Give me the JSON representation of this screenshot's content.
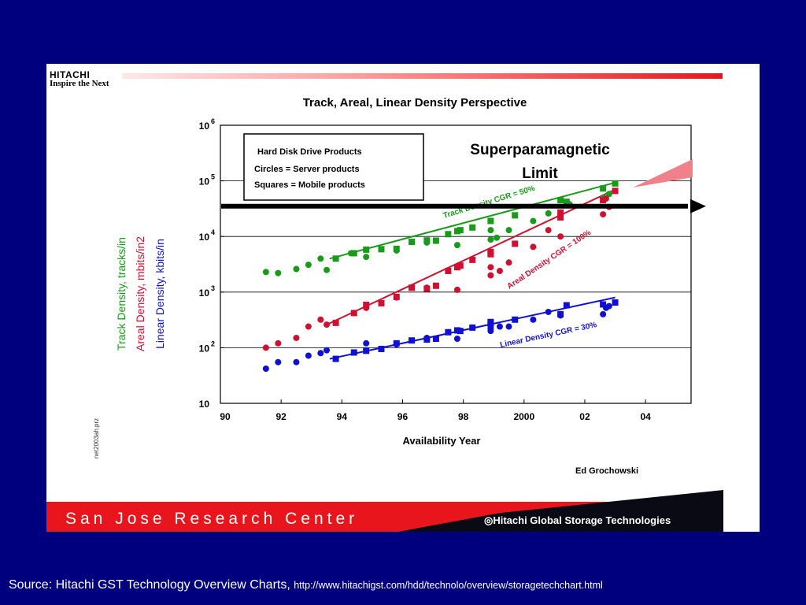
{
  "brand": {
    "logo_name": "HITACHI",
    "logo_tagline": "Inspire the Next",
    "footer_center": "San Jose Research Center",
    "footer_brand": "◎Hitachi Global Storage Technologies"
  },
  "source": {
    "text": "Source: Hitachi GST Technology Overview Charts,",
    "url": "http://www.hitachigst.com/hdd/technolo/overview/storagetechchart.html"
  },
  "chart_data": {
    "type": "scatter",
    "title": "Track, Areal, Linear Density Perspective",
    "xlabel": "Availability Year",
    "xlim": [
      1990,
      2005.5
    ],
    "x_ticks": [
      1990,
      1992,
      1994,
      1996,
      1998,
      2000,
      2002,
      2004
    ],
    "x_tick_labels": [
      "90",
      "92",
      "94",
      "96",
      "98",
      "2000",
      "02",
      "04"
    ],
    "y_scale": "log",
    "ylim": [
      10,
      1000000
    ],
    "y_ticks": [
      {
        "value": 1000000,
        "base": "10",
        "exp": "6"
      },
      {
        "value": 100000,
        "base": "10",
        "exp": "5"
      },
      {
        "value": 10000,
        "base": "10",
        "exp": "4"
      },
      {
        "value": 1000,
        "base": "10",
        "exp": "3"
      },
      {
        "value": 100,
        "base": "10",
        "exp": "2"
      },
      {
        "value": 10,
        "base": "10",
        "exp": ""
      }
    ],
    "gridlines_y": [
      100000,
      10000,
      1000,
      100
    ],
    "ylabels": [
      {
        "text": "Track Density, tracks/in",
        "color": "#1a9a1a"
      },
      {
        "text": "Areal Density, mbits/in2",
        "color": "#d01030"
      },
      {
        "text": "Linear  Density, kbits/in",
        "color": "#1010d0"
      }
    ],
    "legend": {
      "placement": "top-left",
      "lines": [
        "Hard Disk Drive Products",
        "Circles = Server products",
        "Squares = Mobile products"
      ]
    },
    "limit_annotation": {
      "label_lines": [
        "Superparamagnetic",
        "Limit"
      ],
      "y_value": 35000
    },
    "side_label": "net2003ah.prz",
    "author": "Ed Grochowski",
    "series": [
      {
        "key": "track",
        "color": "#1a9a1a",
        "trend_label": "Track Density CGR = 50%",
        "trend": [
          [
            1993.6,
            4000
          ],
          [
            2003,
            93000
          ]
        ],
        "circles": [
          [
            1991.5,
            2300
          ],
          [
            1991.9,
            2200
          ],
          [
            1992.5,
            2600
          ],
          [
            1992.9,
            3100
          ],
          [
            1993.3,
            4000
          ],
          [
            1993.5,
            2500
          ],
          [
            1994.3,
            5000
          ],
          [
            1994.8,
            4300
          ],
          [
            1995.8,
            5600
          ],
          [
            1996.8,
            7800
          ],
          [
            1997.8,
            7000
          ],
          [
            1998.9,
            8800
          ],
          [
            1998.9,
            13000
          ],
          [
            1999.1,
            9500
          ],
          [
            1999.5,
            13000
          ],
          [
            2000.3,
            19000
          ],
          [
            2000.8,
            26000
          ],
          [
            2001.5,
            38000
          ],
          [
            2002.6,
            50000
          ],
          [
            2002.8,
            58000
          ]
        ],
        "squares": [
          [
            1993.8,
            4000
          ],
          [
            1994.4,
            5000
          ],
          [
            1994.8,
            5800
          ],
          [
            1995.3,
            5900
          ],
          [
            1995.8,
            6000
          ],
          [
            1996.3,
            8000
          ],
          [
            1996.8,
            8500
          ],
          [
            1997.1,
            8400
          ],
          [
            1997.5,
            11000
          ],
          [
            1997.8,
            12500
          ],
          [
            1997.9,
            13000
          ],
          [
            1998.3,
            14500
          ],
          [
            1998.9,
            19000
          ],
          [
            1999.7,
            24000
          ],
          [
            2001.2,
            45000
          ],
          [
            2001.4,
            42000
          ],
          [
            2002.6,
            73000
          ],
          [
            2003.0,
            90000
          ]
        ]
      },
      {
        "key": "areal",
        "color": "#d01030",
        "trend_label": "Areal  Density CGR = 100%",
        "trend": [
          [
            1993.5,
            260
          ],
          [
            2003,
            70000
          ]
        ],
        "circles": [
          [
            1991.5,
            100
          ],
          [
            1991.9,
            120
          ],
          [
            1992.5,
            150
          ],
          [
            1992.9,
            240
          ],
          [
            1993.3,
            320
          ],
          [
            1993.5,
            260
          ],
          [
            1994.8,
            520
          ],
          [
            1995.8,
            800
          ],
          [
            1996.8,
            1200
          ],
          [
            1997.8,
            1100
          ],
          [
            1998.9,
            2800
          ],
          [
            1998.9,
            2000
          ],
          [
            1999.2,
            2400
          ],
          [
            1999.5,
            3400
          ],
          [
            2000.3,
            6500
          ],
          [
            2000.8,
            13000
          ],
          [
            2001.2,
            10000
          ],
          [
            2002.6,
            25000
          ],
          [
            2002.7,
            48000
          ],
          [
            2002.8,
            34000
          ]
        ],
        "squares": [
          [
            1993.8,
            280
          ],
          [
            1994.4,
            420
          ],
          [
            1994.8,
            590
          ],
          [
            1995.3,
            630
          ],
          [
            1995.8,
            820
          ],
          [
            1996.3,
            1200
          ],
          [
            1996.8,
            1150
          ],
          [
            1997.1,
            1300
          ],
          [
            1997.5,
            2400
          ],
          [
            1997.8,
            2800
          ],
          [
            1997.9,
            3000
          ],
          [
            1998.3,
            3800
          ],
          [
            1998.9,
            4800
          ],
          [
            1998.9,
            5300
          ],
          [
            1999.7,
            7400
          ],
          [
            2001.2,
            22000
          ],
          [
            2001.2,
            27000
          ],
          [
            2002.6,
            45000
          ],
          [
            2003.0,
            66000
          ]
        ]
      },
      {
        "key": "linear",
        "color": "#1010d0",
        "trend_label": "Linear Density CGR = 30%",
        "trend": [
          [
            1993.6,
            63
          ],
          [
            2003,
            800
          ]
        ],
        "circles": [
          [
            1991.5,
            42
          ],
          [
            1991.9,
            55
          ],
          [
            1992.5,
            55
          ],
          [
            1992.9,
            72
          ],
          [
            1993.3,
            80
          ],
          [
            1993.5,
            90
          ],
          [
            1994.8,
            120
          ],
          [
            1995.8,
            115
          ],
          [
            1996.8,
            150
          ],
          [
            1997.8,
            145
          ],
          [
            1998.9,
            220
          ],
          [
            1998.9,
            200
          ],
          [
            1999.2,
            240
          ],
          [
            1999.5,
            240
          ],
          [
            2000.3,
            320
          ],
          [
            2000.8,
            440
          ],
          [
            2001.2,
            380
          ],
          [
            2002.6,
            400
          ],
          [
            2002.7,
            520
          ],
          [
            2002.8,
            560
          ]
        ],
        "squares": [
          [
            1993.8,
            63
          ],
          [
            1994.4,
            82
          ],
          [
            1994.8,
            88
          ],
          [
            1995.3,
            95
          ],
          [
            1995.8,
            120
          ],
          [
            1996.3,
            135
          ],
          [
            1996.8,
            140
          ],
          [
            1997.1,
            145
          ],
          [
            1997.5,
            190
          ],
          [
            1997.8,
            205
          ],
          [
            1997.9,
            200
          ],
          [
            1998.3,
            230
          ],
          [
            1998.9,
            265
          ],
          [
            1998.9,
            290
          ],
          [
            1999.7,
            320
          ],
          [
            2001.2,
            400
          ],
          [
            2001.4,
            580
          ],
          [
            2002.6,
            600
          ],
          [
            2003.0,
            650
          ]
        ]
      }
    ]
  }
}
